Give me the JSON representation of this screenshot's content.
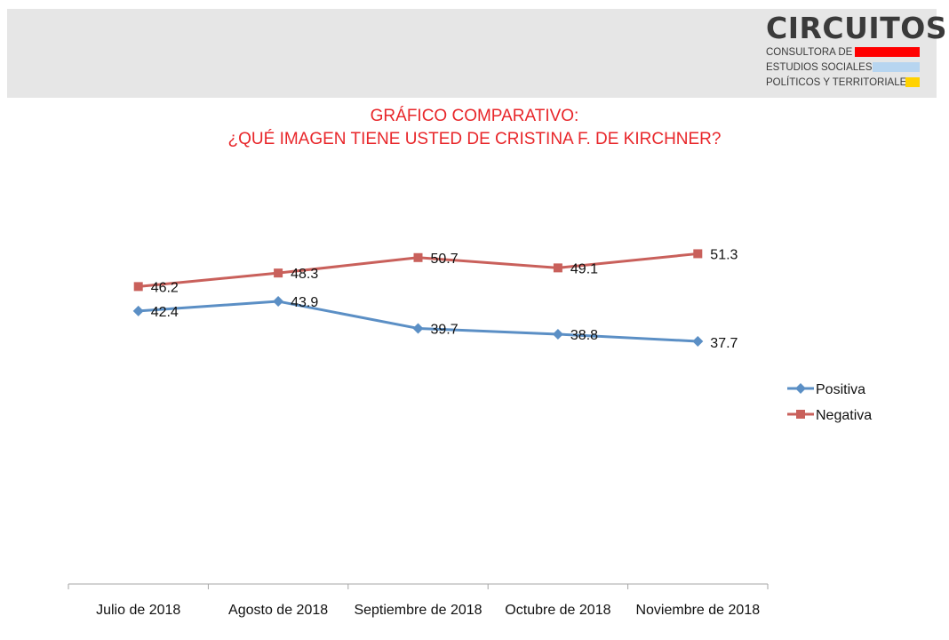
{
  "header": {
    "logo": {
      "name": "CIRCUITOS",
      "line1": "CONSULTORA DE",
      "line2": "ESTUDIOS SOCIALES,",
      "line3": "POLÍTICOS Y TERRITORIALES"
    },
    "colors": {
      "background": "#e6e6e6",
      "bar1": "#ff0000",
      "bar2": "#b7d5f0",
      "bar3": "#ffd200"
    }
  },
  "chart_data": {
    "type": "line",
    "title": "GRÁFICO COMPARATIVO:",
    "subtitle": "¿QUÉ IMAGEN TIENE USTED DE CRISTINA F. DE KIRCHNER?",
    "title_color": "#e8262a",
    "categories": [
      "Julio de 2018",
      "Agosto de 2018",
      "Septiembre de 2018",
      "Octubre de 2018",
      "Noviembre de 2018"
    ],
    "series": [
      {
        "name": "Positiva",
        "values": [
          42.4,
          43.9,
          39.7,
          38.8,
          37.7
        ],
        "color": "#5b8fc5",
        "marker": "diamond"
      },
      {
        "name": "Negativa",
        "values": [
          46.2,
          48.3,
          50.7,
          49.1,
          51.3
        ],
        "color": "#c9605b",
        "marker": "square"
      }
    ],
    "ylim": [
      0,
      70
    ],
    "grid": false,
    "y_axis_visible": false,
    "data_labels": true,
    "legend": "right"
  }
}
